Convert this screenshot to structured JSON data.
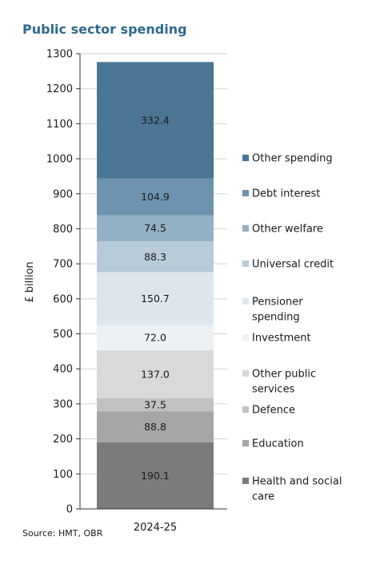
{
  "chart_data": {
    "type": "bar",
    "stacked": true,
    "title": "Public sector spending",
    "ylabel": "£ billion",
    "xlabel": "",
    "categories": [
      "2024-25"
    ],
    "ylim": [
      0,
      1300
    ],
    "yticks": [
      0,
      100,
      200,
      300,
      400,
      500,
      600,
      700,
      800,
      900,
      1000,
      1100,
      1200,
      1300
    ],
    "grid": true,
    "legend_position": "right",
    "source": "Source: HMT, OBR",
    "colors": {
      "title": "#2e6a8f",
      "grid": "#d3d3d3",
      "axis": "#333333"
    },
    "series": [
      {
        "name": "Health and social care",
        "values": [
          190.1
        ],
        "label": "190.1",
        "color": "#7b7b7b",
        "legend_lines": [
          "Health and social",
          "care"
        ]
      },
      {
        "name": "Education",
        "values": [
          88.8
        ],
        "label": "88.8",
        "color": "#a6a6a6",
        "legend_lines": [
          "Education"
        ]
      },
      {
        "name": "Defence",
        "values": [
          37.5
        ],
        "label": "37.5",
        "color": "#c1c1c1",
        "legend_lines": [
          "Defence"
        ]
      },
      {
        "name": "Other public services",
        "values": [
          137.0
        ],
        "label": "137.0",
        "color": "#d9d9d9",
        "legend_lines": [
          "Other public",
          "services"
        ]
      },
      {
        "name": "Investment",
        "values": [
          72.0
        ],
        "label": "72.0",
        "color": "#eef1f4",
        "legend_lines": [
          "Investment"
        ]
      },
      {
        "name": "Pensioner spending",
        "values": [
          150.7
        ],
        "label": "150.7",
        "color": "#dde6ed",
        "legend_lines": [
          "Pensioner",
          "spending"
        ]
      },
      {
        "name": "Universal credit",
        "values": [
          88.3
        ],
        "label": "88.3",
        "color": "#b8cbd9",
        "legend_lines": [
          "Universal credit"
        ]
      },
      {
        "name": "Other welfare",
        "values": [
          74.5
        ],
        "label": "74.5",
        "color": "#93b0c5",
        "legend_lines": [
          "Other welfare"
        ]
      },
      {
        "name": "Debt interest",
        "values": [
          104.9
        ],
        "label": "104.9",
        "color": "#6d93b0",
        "legend_lines": [
          "Debt interest"
        ]
      },
      {
        "name": "Other spending",
        "values": [
          332.4
        ],
        "label": "332.4",
        "color": "#4a7595",
        "legend_lines": [
          "Other spending"
        ]
      }
    ]
  }
}
